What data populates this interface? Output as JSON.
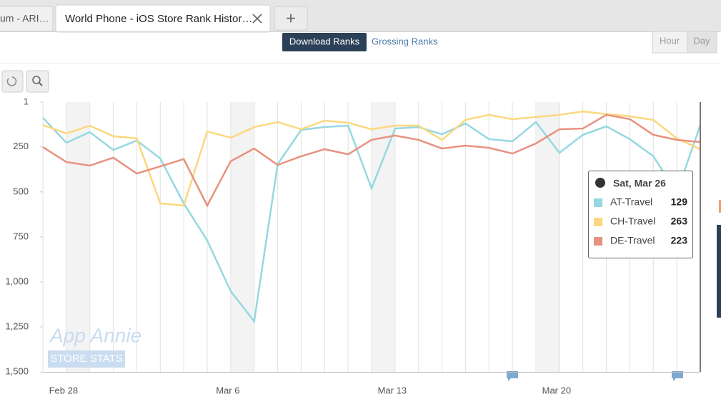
{
  "browser": {
    "tabs": [
      "um - ARI…",
      "World Phone - iOS Store Rank Histor…"
    ],
    "new_tab": "+"
  },
  "controls": {
    "rank_types": [
      "Download Ranks",
      "Grossing Ranks"
    ],
    "granularity": [
      "Hour",
      "Day"
    ]
  },
  "watermark": {
    "brand": "App Annie",
    "product": "STORE STATS"
  },
  "tooltip": {
    "date": "Sat, Mar 26",
    "index": 28
  },
  "chart_data": {
    "type": "line",
    "categories": [
      null,
      "Feb 28",
      null,
      null,
      null,
      null,
      null,
      null,
      "Mar 6",
      null,
      null,
      null,
      null,
      null,
      null,
      "Mar 13",
      null,
      null,
      null,
      null,
      null,
      null,
      "Mar 20",
      null,
      null,
      null,
      null,
      null,
      null
    ],
    "ylim": [
      1,
      1500
    ],
    "y_inverted": true,
    "yticks": [
      1,
      250,
      500,
      750,
      {
        "value": 1000,
        "label": "1,000"
      },
      {
        "value": 1250,
        "label": "1,250"
      },
      {
        "value": 1500,
        "label": "1,500"
      }
    ],
    "series": [
      {
        "name": "AT-Travel",
        "color": "#95d8e2",
        "values": [
          88,
          227,
          168,
          267,
          215,
          314,
          564,
          770,
          1052,
          1219,
          346,
          156,
          140,
          132,
          481,
          148,
          140,
          180,
          120,
          207,
          219,
          112,
          283,
          183,
          136,
          207,
          302,
          505,
          129
        ]
      },
      {
        "name": "CH-Travel",
        "color": "#fbd87f",
        "values": [
          128,
          175,
          132,
          191,
          203,
          564,
          576,
          164,
          199,
          140,
          112,
          152,
          104,
          116,
          152,
          132,
          132,
          211,
          100,
          72,
          96,
          84,
          72,
          53,
          68,
          80,
          100,
          203,
          263
        ]
      },
      {
        "name": "DE-Travel",
        "color": "#e9917f",
        "values": [
          251,
          334,
          354,
          310,
          398,
          358,
          318,
          576,
          330,
          259,
          350,
          302,
          263,
          291,
          211,
          187,
          211,
          259,
          243,
          255,
          287,
          231,
          152,
          148,
          72,
          96,
          183,
          211,
          223
        ]
      }
    ]
  }
}
